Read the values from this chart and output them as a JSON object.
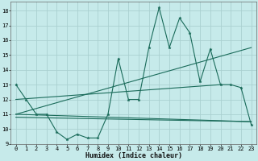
{
  "title": "",
  "xlabel": "Humidex (Indice chaleur)",
  "background_color": "#c6eaea",
  "grid_color": "#aad0d0",
  "line_color": "#1a6b5a",
  "xlim": [
    -0.5,
    23.5
  ],
  "ylim": [
    9,
    18.6
  ],
  "yticks": [
    9,
    10,
    11,
    12,
    13,
    14,
    15,
    16,
    17,
    18
  ],
  "xticks": [
    0,
    1,
    2,
    3,
    4,
    5,
    6,
    7,
    8,
    9,
    10,
    11,
    12,
    13,
    14,
    15,
    16,
    17,
    18,
    19,
    20,
    21,
    22,
    23
  ],
  "series1_x": [
    0,
    1,
    2,
    3,
    4,
    5,
    6,
    7,
    8,
    9,
    10,
    11,
    12,
    13,
    14,
    15,
    16,
    17,
    18,
    19,
    20,
    21,
    22,
    23
  ],
  "series1_y": [
    13.0,
    12.0,
    11.0,
    11.0,
    9.8,
    9.3,
    9.65,
    9.4,
    9.4,
    11.0,
    14.75,
    12.0,
    12.0,
    15.5,
    18.2,
    15.5,
    17.5,
    16.5,
    13.2,
    15.4,
    13.0,
    13.0,
    12.8,
    10.3
  ],
  "series2_x": [
    0,
    23
  ],
  "series2_y": [
    11.0,
    15.5
  ],
  "series3_x": [
    0,
    20
  ],
  "series3_y": [
    12.0,
    13.0
  ],
  "series4_x": [
    0,
    23
  ],
  "series4_y": [
    11.0,
    10.5
  ],
  "series5_x": [
    0,
    23
  ],
  "series5_y": [
    10.8,
    10.5
  ]
}
